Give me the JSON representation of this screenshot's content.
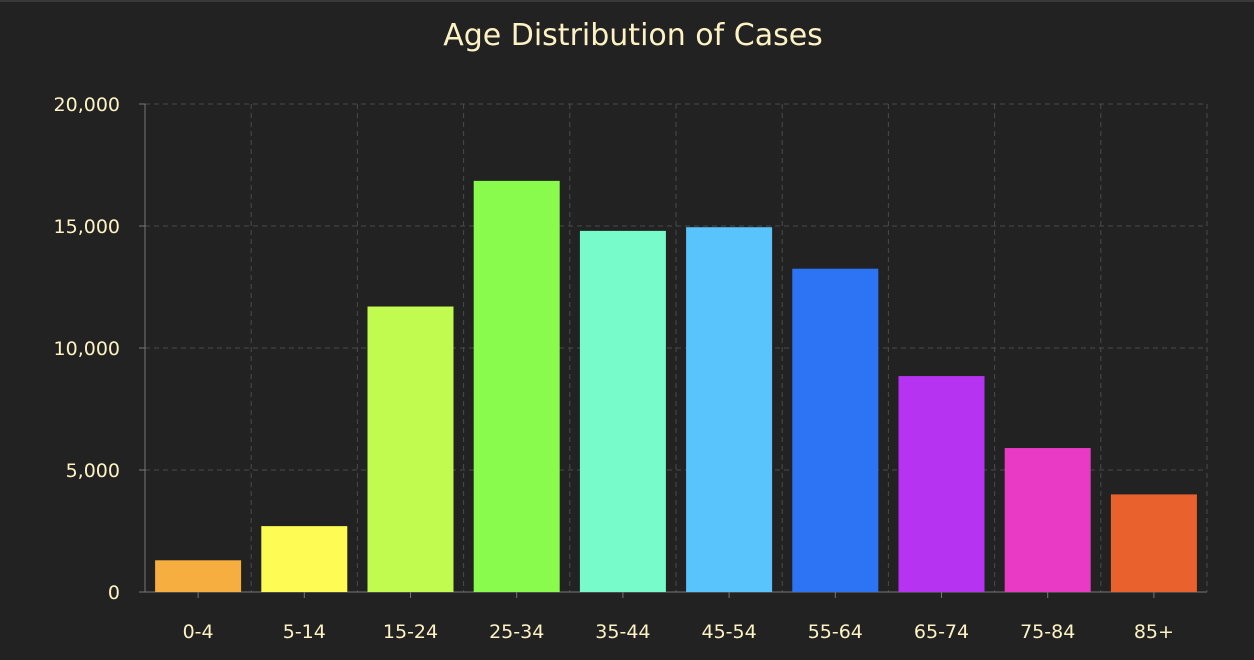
{
  "chart_data": {
    "type": "bar",
    "title": "Age Distribution of Cases",
    "xlabel": "",
    "ylabel": "",
    "categories": [
      "0-4",
      "5-14",
      "15-24",
      "25-34",
      "35-44",
      "45-54",
      "55-64",
      "65-74",
      "75-84",
      "85+"
    ],
    "values": [
      1300,
      2700,
      11700,
      16850,
      14800,
      14950,
      13250,
      8850,
      5900,
      4000
    ],
    "colors": [
      "#f5ae3f",
      "#fdfb54",
      "#c2fb50",
      "#89fb4c",
      "#77fbca",
      "#59c4fb",
      "#2d74f5",
      "#b633f2",
      "#e83ac5",
      "#e9622e"
    ],
    "ylim": [
      0,
      20000
    ],
    "yticks": [
      0,
      5000,
      10000,
      15000,
      20000
    ],
    "ytick_labels": [
      "0",
      "5,000",
      "10,000",
      "15,000",
      "20,000"
    ],
    "grid": true,
    "legend": "none",
    "background": "#222222",
    "text_color": "#fdf2c4",
    "grid_color": "#4a4a4a"
  }
}
